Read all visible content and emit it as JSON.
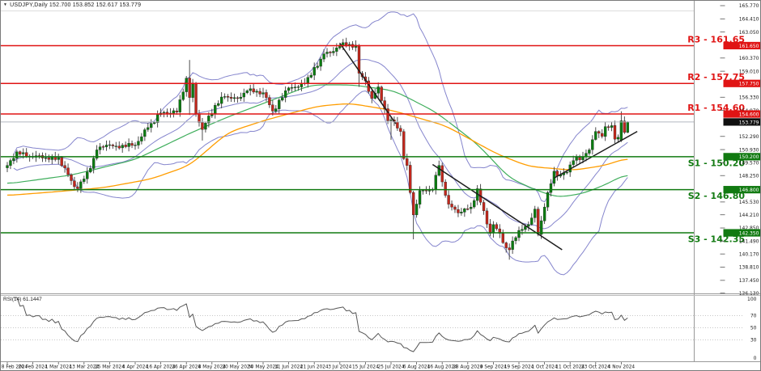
{
  "title": {
    "marker": "▼",
    "text": "USDJPY,Daily 152.700 153.852 152.617 153.779",
    "symbol": "USDJPY",
    "timeframe": "Daily"
  },
  "rsi_pane": {
    "label": "RSI(14) 61.1447",
    "period": 14,
    "last_value": 61.1447,
    "scale_labels": [
      "100",
      "70",
      "50",
      "30",
      "0"
    ],
    "scale_values": [
      100,
      70,
      50,
      30,
      0
    ],
    "dotted_levels": [
      70,
      50,
      30
    ],
    "line_color": "#565656"
  },
  "colors": {
    "background": "#ffffff",
    "border": "#9a9a9a",
    "resistance": "#e01414",
    "support": "#117a11",
    "current_price_line": "#b3b7c0",
    "current_price_badge": "#101010",
    "bollinger": "#8585cd",
    "ma_fast": "#3fae5c",
    "ma_slow": "#ff9d00",
    "bull_candle": "#0a7c10",
    "bear_candle": "#c2271c",
    "wick": "#3a3a3a",
    "trendline": "#1c1c1c",
    "axis_text": "#1a1a1a"
  },
  "chart_data": {
    "type": "candlestick",
    "symbol": "USDJPY",
    "timeframe": "Daily",
    "title": "USDJPY,Daily 152.700 153.852 152.617 153.779",
    "last_bar": {
      "open": 152.7,
      "high": 153.852,
      "low": 152.617,
      "close": 153.779
    },
    "current_price": 153.779,
    "current_price_badge": "153.779",
    "y_axis": {
      "ticks": [
        "165.770",
        "164.410",
        "163.050",
        "160.370",
        "159.010",
        "156.330",
        "154.970",
        "152.290",
        "150.930",
        "149.570",
        "148.250",
        "145.530",
        "144.210",
        "142.850",
        "141.490",
        "140.170",
        "138.810",
        "137.450",
        "136.130"
      ],
      "range": [
        135.9,
        166.2
      ]
    },
    "x_axis": {
      "labels": [
        "8 Feb 2024",
        "20 Feb 2024",
        "1 Mar 2024",
        "13 Mar 2024",
        "25 Mar 2024",
        "4 Apr 2024",
        "16 Apr 2024",
        "26 Apr 2024",
        "8 May 2024",
        "20 May 2024",
        "30 May 2024",
        "11 Jun 2024",
        "21 Jun 2024",
        "3 Jul 2024",
        "15 Jul 2024",
        "25 Jul 2024",
        "6 Aug 2024",
        "16 Aug 2024",
        "28 Aug 2024",
        "9 Sep 2024",
        "19 Sep 2024",
        "1 Oct 2024",
        "11 Oct 2024",
        "23 Oct 2024",
        "4 Nov 2024"
      ],
      "bars_per_label": 8,
      "total_bars": 195,
      "start_date": "2024-02-08",
      "end_date": "2024-11-06"
    },
    "levels": [
      {
        "name": "R3",
        "label": "R3 - 161.65",
        "price": 161.65,
        "badge": "161.650",
        "type": "resistance"
      },
      {
        "name": "R2",
        "label": "R2 - 157.75",
        "price": 157.75,
        "badge": "157.750",
        "type": "resistance"
      },
      {
        "name": "R1",
        "label": "R1 - 154.60",
        "price": 154.6,
        "badge": "154.600",
        "type": "resistance"
      },
      {
        "name": "S1",
        "label": "S1 - 150.20",
        "price": 150.2,
        "badge": "150.200",
        "type": "support"
      },
      {
        "name": "S2",
        "label": "S2 - 146.80",
        "price": 146.8,
        "badge": "146.800",
        "type": "support"
      },
      {
        "name": "S3",
        "label": "S3 - 142.35",
        "price": 142.35,
        "badge": "142.350",
        "type": "support"
      }
    ],
    "close_path_anchors": [
      [
        0,
        149.3
      ],
      [
        3,
        150.7
      ],
      [
        6,
        150.2
      ],
      [
        9,
        150.3
      ],
      [
        15,
        149.9
      ],
      [
        16,
        150.1
      ],
      [
        21,
        147.1
      ],
      [
        22,
        146.9
      ],
      [
        26,
        149.0
      ],
      [
        28,
        150.9
      ],
      [
        31,
        151.4
      ],
      [
        34,
        151.3
      ],
      [
        40,
        151.4
      ],
      [
        44,
        153.2
      ],
      [
        48,
        154.7
      ],
      [
        53,
        154.8
      ],
      [
        56,
        158.3
      ],
      [
        57,
        156.3
      ],
      [
        58,
        157.8
      ],
      [
        59,
        154.6
      ],
      [
        61,
        153.0
      ],
      [
        65,
        155.5
      ],
      [
        68,
        156.4
      ],
      [
        72,
        156.2
      ],
      [
        75,
        157.0
      ],
      [
        80,
        156.8
      ],
      [
        83,
        154.9
      ],
      [
        88,
        157.3
      ],
      [
        91,
        157.4
      ],
      [
        95,
        158.6
      ],
      [
        99,
        160.8
      ],
      [
        101,
        160.9
      ],
      [
        104,
        161.7
      ],
      [
        109,
        161.7
      ],
      [
        110,
        158.8
      ],
      [
        112,
        158.0
      ],
      [
        114,
        156.2
      ],
      [
        116,
        157.4
      ],
      [
        119,
        153.9
      ],
      [
        121,
        153.8
      ],
      [
        123,
        152.8
      ],
      [
        124,
        150.0
      ],
      [
        125,
        149.3
      ],
      [
        126,
        146.5
      ],
      [
        127,
        144.2
      ],
      [
        129,
        146.7
      ],
      [
        133,
        146.8
      ],
      [
        135,
        149.3
      ],
      [
        136,
        147.6
      ],
      [
        138,
        145.3
      ],
      [
        141,
        144.4
      ],
      [
        142,
        144.5
      ],
      [
        145,
        145.0
      ],
      [
        147,
        146.9
      ],
      [
        148,
        145.5
      ],
      [
        151,
        142.3
      ],
      [
        152,
        143.2
      ],
      [
        154,
        142.3
      ],
      [
        156,
        140.8
      ],
      [
        157,
        140.6
      ],
      [
        160,
        142.6
      ],
      [
        163,
        143.2
      ],
      [
        165,
        144.8
      ],
      [
        166,
        142.2
      ],
      [
        167,
        143.6
      ],
      [
        169,
        146.5
      ],
      [
        171,
        148.7
      ],
      [
        172,
        148.2
      ],
      [
        175,
        148.6
      ],
      [
        177,
        149.8
      ],
      [
        180,
        150.2
      ],
      [
        182,
        150.9
      ],
      [
        184,
        152.8
      ],
      [
        186,
        152.3
      ],
      [
        187,
        153.3
      ],
      [
        189,
        153.4
      ],
      [
        190,
        152.0
      ],
      [
        191,
        152.2
      ],
      [
        192,
        153.9
      ],
      [
        193,
        152.7
      ],
      [
        194,
        153.779
      ]
    ],
    "wick_overrides": {
      "3": {
        "h": 150.9
      },
      "57": {
        "h": 160.17,
        "l": 154.5
      },
      "61": {
        "l": 151.86
      },
      "104": {
        "h": 161.95
      },
      "110": {
        "h": 161.81,
        "l": 157.4
      },
      "120": {
        "l": 151.94
      },
      "127": {
        "l": 141.68
      },
      "157": {
        "l": 139.58
      },
      "192": {
        "o": 151.9,
        "h": 154.88
      },
      "193": {
        "h": 154.35
      },
      "194": {
        "o": 152.7,
        "h": 153.852,
        "l": 152.617,
        "c": 153.779
      }
    },
    "indicators": {
      "bollinger": {
        "period": 20,
        "deviation": 2.3
      },
      "ma_fast": {
        "anchors": [
          [
            0,
            147.4
          ],
          [
            20,
            148.3
          ],
          [
            40,
            149.9
          ],
          [
            57,
            152.6
          ],
          [
            69,
            154.3
          ],
          [
            81,
            155.8
          ],
          [
            95,
            157.6
          ],
          [
            108,
            157.6
          ],
          [
            121,
            157.0
          ],
          [
            134,
            154.8
          ],
          [
            147,
            151.5
          ],
          [
            157,
            148.0
          ],
          [
            165,
            146.8
          ],
          [
            172,
            146.0
          ],
          [
            180,
            146.4
          ],
          [
            187,
            147.3
          ],
          [
            194,
            148.5
          ]
        ]
      },
      "ma_slow": {
        "anchors": [
          [
            0,
            146.2
          ],
          [
            12,
            146.5
          ],
          [
            30,
            147.0
          ],
          [
            45,
            147.9
          ],
          [
            57,
            149.3
          ],
          [
            69,
            152.7
          ],
          [
            81,
            154.0
          ],
          [
            97,
            155.4
          ],
          [
            107,
            155.7
          ],
          [
            120,
            155.0
          ],
          [
            137,
            153.4
          ],
          [
            153,
            150.5
          ],
          [
            163,
            149.2
          ],
          [
            177,
            148.8
          ],
          [
            187,
            149.3
          ],
          [
            194,
            150.1
          ]
        ]
      },
      "rsi": {
        "period": 14,
        "label": "RSI(14) 61.1447",
        "last": 61.1447,
        "levels": [
          70,
          50,
          30
        ]
      }
    },
    "trendlines": [
      {
        "from": [
          104,
          161.9
        ],
        "to": [
          121.5,
          153.6
        ],
        "direction": "down"
      },
      {
        "from": [
          133,
          149.4
        ],
        "to": [
          173.5,
          140.6
        ],
        "direction": "down"
      },
      {
        "from": [
          171,
          148.0
        ],
        "to": [
          197.0,
          152.8
        ],
        "direction": "up"
      }
    ]
  }
}
